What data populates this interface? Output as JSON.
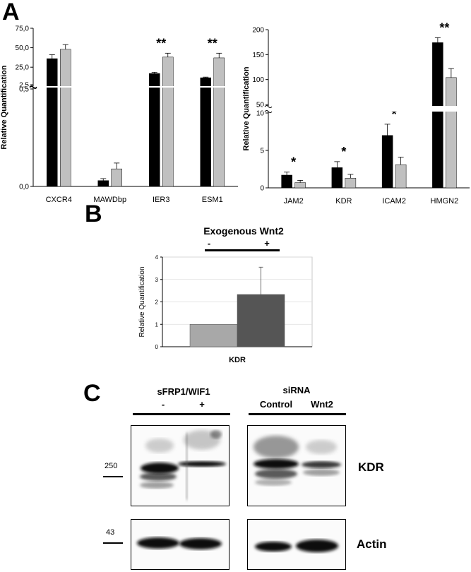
{
  "panels": {
    "a": "A",
    "b": "B",
    "c": "C"
  },
  "chart_data": [
    {
      "id": "A-left",
      "type": "bar",
      "ylabel": "Relative Quantification",
      "categories": [
        "CXCR4",
        "MAWDbp",
        "IER3",
        "ESM1"
      ],
      "axis_break": {
        "lower_range": [
          0,
          0.5
        ],
        "upper_range": [
          2.5,
          75
        ]
      },
      "y_ticks_lower": [
        "0,0",
        "0,5"
      ],
      "y_ticks_upper": [
        "2,5",
        "25,0",
        "50,0",
        "75,0"
      ],
      "series": [
        {
          "values": [
            36,
            0.03,
            17,
            11.5
          ],
          "errors": [
            5,
            0.01,
            1.5,
            0.8
          ],
          "color": "#000000"
        },
        {
          "values": [
            48,
            0.09,
            38,
            37
          ],
          "errors": [
            6,
            0.03,
            5,
            6
          ],
          "color": "#c0c0c0"
        }
      ],
      "significance": [
        "",
        "",
        "**",
        "**"
      ]
    },
    {
      "id": "A-right",
      "type": "bar",
      "ylabel": "Relative Quantification",
      "categories": [
        "JAM2",
        "KDR",
        "ICAM2",
        "HMGN2"
      ],
      "axis_break": {
        "lower_range": [
          0,
          10
        ],
        "upper_range": [
          50,
          200
        ]
      },
      "y_ticks_lower": [
        "0",
        "5",
        "10"
      ],
      "y_ticks_upper": [
        "50",
        "100",
        "150",
        "200"
      ],
      "series": [
        {
          "values": [
            1.7,
            2.7,
            7.0,
            174
          ],
          "errors": [
            0.4,
            0.8,
            1.5,
            10
          ],
          "color": "#000000"
        },
        {
          "values": [
            0.7,
            1.3,
            3.1,
            104
          ],
          "errors": [
            0.3,
            0.5,
            1.0,
            18
          ],
          "color": "#c0c0c0"
        }
      ],
      "significance": [
        "*",
        "*",
        "*",
        "**"
      ]
    },
    {
      "id": "B",
      "type": "bar",
      "title": "Exogenous Wnt2",
      "conditions": [
        "-",
        "+"
      ],
      "ylabel": "Relative Quantification",
      "xlabel": "KDR",
      "ylim": [
        0,
        4
      ],
      "y_ticks": [
        "0",
        "1",
        "2",
        "3",
        "4"
      ],
      "series": [
        {
          "value": 1.0,
          "error": 0,
          "color": "#a8a8a8"
        },
        {
          "value": 2.33,
          "error": 1.22,
          "color": "#555555"
        }
      ]
    }
  ],
  "blot": {
    "left_header_title": "sFRP1/WIF1",
    "left_conditions": [
      "-",
      "+"
    ],
    "right_header_title": "siRNA",
    "right_conditions": [
      "Control",
      "Wnt2"
    ],
    "marker_upper": "250",
    "marker_lower": "43",
    "label_upper": "KDR",
    "label_lower": "Actin"
  }
}
